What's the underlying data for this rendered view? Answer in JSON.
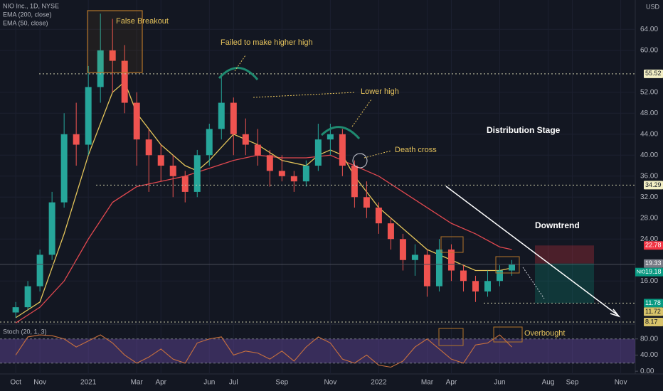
{
  "chart_data": [
    {
      "type": "candlestick",
      "title": "NIO Inc., 1D, NYSE",
      "currency": "USD",
      "x": [
        0,
        0.5,
        1,
        1.5,
        2,
        2.5,
        3,
        3.5,
        4,
        4.5,
        5,
        5.5,
        6,
        6.5,
        7,
        7.5,
        8,
        8.5,
        9,
        9.5,
        10,
        10.5,
        11,
        11.5,
        12,
        12.5,
        13,
        13.5,
        14,
        14.5,
        15,
        15.5,
        16,
        16.5,
        17,
        17.5,
        18,
        18.5,
        19,
        19.5,
        20,
        20.5
      ],
      "open": [
        10,
        11,
        15,
        21,
        31,
        44,
        42,
        53,
        60,
        58,
        50,
        43,
        40,
        38,
        36,
        33,
        40,
        45,
        50,
        44,
        42,
        40,
        37,
        36,
        35,
        38,
        43,
        44,
        38,
        32,
        30,
        27,
        24,
        20,
        21,
        15,
        22,
        18,
        16,
        14,
        16,
        18
      ],
      "high": [
        12,
        16,
        22,
        33,
        48,
        50,
        57,
        67,
        66,
        61,
        52,
        45,
        42,
        40,
        37,
        41,
        46,
        55,
        51,
        47,
        45,
        41,
        40,
        37,
        39,
        46,
        46,
        45,
        39,
        35,
        31,
        28,
        25,
        23,
        22,
        24,
        23,
        19,
        17,
        18,
        19,
        20
      ],
      "low": [
        9,
        10.5,
        14,
        20,
        30,
        38,
        40,
        50,
        52,
        48,
        38,
        33,
        35,
        32,
        31,
        32,
        38,
        43,
        40,
        40,
        38,
        34,
        35,
        33,
        34,
        37,
        40,
        36,
        30,
        28,
        25,
        22,
        18,
        17,
        13,
        14,
        16,
        14,
        12,
        13,
        15,
        17
      ],
      "close": [
        11,
        15,
        21,
        31,
        44,
        42,
        53,
        60,
        58,
        50,
        43,
        40,
        38,
        36,
        33,
        40,
        45,
        50,
        44,
        42,
        40,
        37,
        36,
        35,
        38,
        43,
        44,
        38,
        32,
        30,
        27,
        24,
        20,
        21,
        15,
        22,
        18,
        16,
        14,
        16,
        18,
        19.18
      ],
      "up_color": "#26a69a",
      "down_color": "#ef5350",
      "series": [
        {
          "name": "EMA (200, close)",
          "color": "#e0484f",
          "x": [
            0,
            1,
            2,
            3,
            4,
            5,
            6,
            7,
            8,
            9,
            10,
            11,
            12,
            13,
            14,
            15,
            16,
            17,
            18,
            19,
            20,
            20.5
          ],
          "values": [
            8,
            11,
            16,
            24,
            31,
            34,
            35,
            36,
            37.5,
            39,
            40,
            39.5,
            39.5,
            40,
            38,
            36,
            33,
            30,
            27,
            25,
            22.5,
            22
          ]
        },
        {
          "name": "EMA (50, close)",
          "color": "#e3c45a",
          "x": [
            0,
            1,
            2,
            3,
            4,
            4.5,
            5,
            6,
            7,
            7.5,
            8,
            9,
            10,
            11,
            12,
            12.5,
            13,
            13.5,
            14,
            15,
            16,
            17,
            18,
            19,
            20,
            20.5
          ],
          "values": [
            9,
            12,
            25,
            40,
            52,
            54,
            48,
            42,
            38,
            37,
            39,
            44,
            42,
            39,
            38,
            40,
            41,
            40,
            36,
            30,
            26,
            22,
            20,
            18,
            18,
            18.5
          ]
        }
      ],
      "xlim": [
        -0.65,
        25.6
      ],
      "xticks": [
        {
          "value": 0,
          "label": "Oct"
        },
        {
          "value": 1,
          "label": "Nov"
        },
        {
          "value": 3,
          "label": "2021"
        },
        {
          "value": 5,
          "label": "Mar"
        },
        {
          "value": 6,
          "label": "Apr"
        },
        {
          "value": 8,
          "label": "Jun"
        },
        {
          "value": 9,
          "label": "Jul"
        },
        {
          "value": 11,
          "label": "Sep"
        },
        {
          "value": 13,
          "label": "Nov"
        },
        {
          "value": 15,
          "label": "2022"
        },
        {
          "value": 17,
          "label": "Mar"
        },
        {
          "value": 18,
          "label": "Apr"
        },
        {
          "value": 20,
          "label": "Jun"
        },
        {
          "value": 22,
          "label": "Aug"
        },
        {
          "value": 23,
          "label": "Sep"
        },
        {
          "value": 25,
          "label": "Nov"
        }
      ],
      "ylim": [
        7.9,
        69.6
      ],
      "yticks": [
        {
          "value": 16,
          "label": "16.00"
        },
        {
          "value": 24,
          "label": "24.00"
        },
        {
          "value": 28,
          "label": "28.00"
        },
        {
          "value": 32,
          "label": "32.00"
        },
        {
          "value": 36,
          "label": "36.00"
        },
        {
          "value": 40,
          "label": "40.00"
        },
        {
          "value": 44,
          "label": "44.00"
        },
        {
          "value": 48,
          "label": "48.00"
        },
        {
          "value": 52,
          "label": "52.00"
        },
        {
          "value": 60,
          "label": "60.00"
        },
        {
          "value": 64,
          "label": "64.00"
        }
      ],
      "levels": [
        {
          "value": 55.52,
          "color": "#f3efc4"
        },
        {
          "value": 34.29,
          "color": "#f3efc4"
        },
        {
          "value": 22.78,
          "color": "#f23645"
        },
        {
          "value": 19.33,
          "color": "#787b86"
        },
        {
          "name": "NIO",
          "value": 19.18,
          "color": "#089981"
        },
        {
          "value": 11.78,
          "color": "#089981"
        },
        {
          "value": 11.72,
          "color": "#d8c36a"
        },
        {
          "value": 8.17,
          "color": "#d8c36a"
        }
      ],
      "annotations": [
        "False Breakout",
        "Failed to make higher high",
        "Lower high",
        "Death cross",
        "Distribution Stage",
        "Downtrend"
      ]
    },
    {
      "type": "line",
      "title": "Stoch (20, 1, 3)",
      "x": [
        0,
        0.5,
        1,
        1.5,
        2,
        2.5,
        3,
        3.5,
        4,
        4.5,
        5,
        5.5,
        6,
        6.5,
        7,
        7.5,
        8,
        8.5,
        9,
        9.5,
        10,
        10.5,
        11,
        11.5,
        12,
        12.5,
        13,
        13.5,
        14,
        14.5,
        15,
        15.5,
        16,
        16.5,
        17,
        17.5,
        18,
        18.5,
        19,
        19.5,
        20,
        20.5
      ],
      "values": [
        40,
        85,
        90,
        88,
        80,
        60,
        75,
        90,
        70,
        40,
        20,
        35,
        55,
        30,
        20,
        70,
        80,
        85,
        40,
        50,
        45,
        30,
        50,
        25,
        60,
        85,
        70,
        30,
        20,
        40,
        15,
        10,
        25,
        60,
        80,
        55,
        30,
        20,
        65,
        70,
        90,
        60
      ],
      "color": "#c9713d",
      "band": [
        20,
        80
      ],
      "ylim": [
        -5,
        113
      ],
      "yticks": [
        {
          "value": 0,
          "label": "0.00"
        },
        {
          "value": 40,
          "label": "40.00"
        },
        {
          "value": 80,
          "label": "80.00"
        }
      ],
      "annotation": "Overbought"
    }
  ]
}
